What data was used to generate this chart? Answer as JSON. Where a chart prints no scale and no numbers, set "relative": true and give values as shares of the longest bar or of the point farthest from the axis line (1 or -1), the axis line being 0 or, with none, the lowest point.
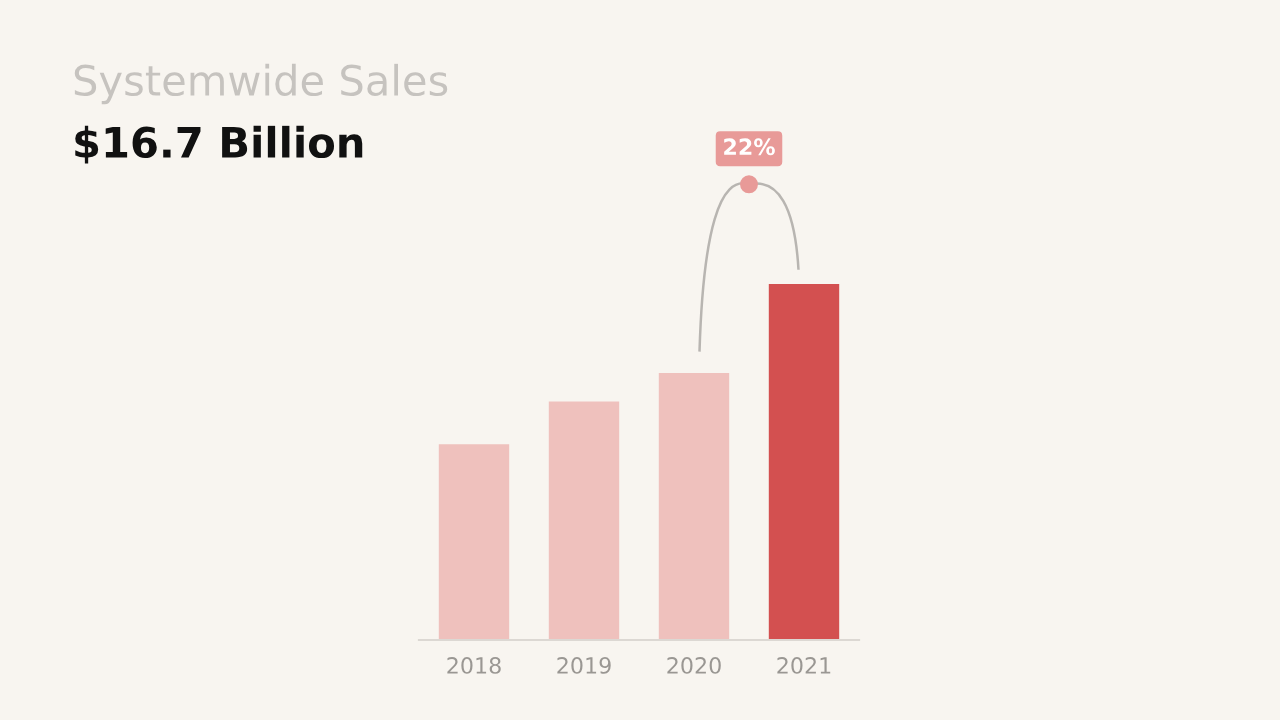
{
  "chart_data": {
    "type": "bar",
    "title": "Systemwide Sales",
    "subtitle": "$16.7 Billion",
    "categories": [
      "2018",
      "2019",
      "2020",
      "2021"
    ],
    "values": [
      0.55,
      0.67,
      0.75,
      1
    ],
    "colors": [
      "#efc1bd",
      "#efc1bd",
      "#efc1bd",
      "#d35050"
    ],
    "relative": true,
    "grid": false,
    "legend": false,
    "annotations": [
      "22%"
    ]
  }
}
